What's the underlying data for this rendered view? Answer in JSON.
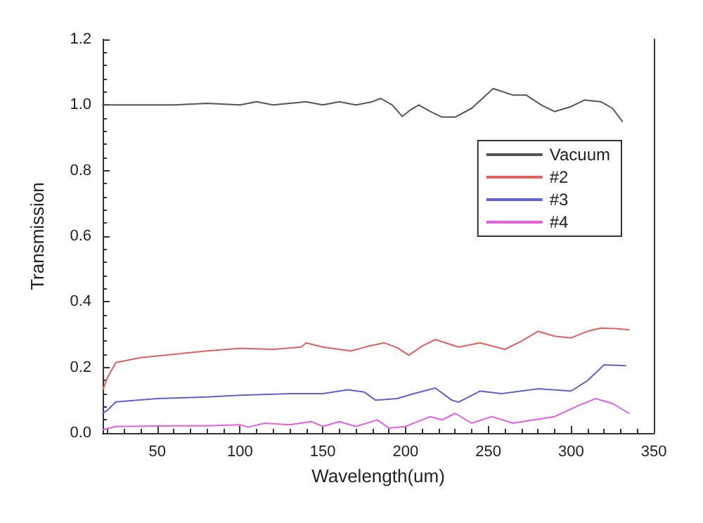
{
  "chart_data": {
    "type": "line",
    "xlabel": "Wavelength(um)",
    "ylabel": "Transmission",
    "xlim": [
      17,
      350
    ],
    "ylim": [
      0,
      1.2
    ],
    "xticks": [
      50,
      100,
      150,
      200,
      250,
      300,
      350
    ],
    "yticks": [
      {
        "value": 0,
        "label": "0.0"
      },
      {
        "value": 0.2,
        "label": "0.2"
      },
      {
        "value": 0.4,
        "label": "0.4"
      },
      {
        "value": 0.6,
        "label": "0.6"
      },
      {
        "value": 0.8,
        "label": "0.8"
      },
      {
        "value": 1,
        "label": "1.0"
      },
      {
        "value": 1.2,
        "label": "1.2"
      }
    ],
    "grid": false,
    "legend": "right",
    "marker": "none",
    "line_style": "solid",
    "series": [
      {
        "name": "Vacuum",
        "color": "#555555",
        "x": [
          17,
          40,
          60,
          80,
          100,
          110,
          120,
          130,
          140,
          150,
          160,
          170,
          180,
          185,
          192,
          198,
          203,
          208,
          215,
          222,
          230,
          240,
          253,
          265,
          273,
          282,
          290,
          300,
          308,
          318,
          325,
          331
        ],
        "values": [
          1.0,
          1.0,
          1.0,
          1.005,
          1.0,
          1.01,
          1.0,
          1.005,
          1.01,
          1.0,
          1.01,
          1.0,
          1.01,
          1.02,
          1.0,
          0.965,
          0.985,
          1.0,
          0.98,
          0.963,
          0.963,
          0.99,
          1.05,
          1.03,
          1.03,
          1.0,
          0.98,
          0.995,
          1.015,
          1.01,
          0.99,
          0.95
        ]
      },
      {
        "name": "#2",
        "color": "#e06060",
        "x": [
          17,
          20,
          25,
          40,
          60,
          80,
          100,
          120,
          137,
          140,
          150,
          167,
          178,
          187,
          195,
          202,
          210,
          218,
          232,
          245,
          260,
          270,
          280,
          290,
          300,
          310,
          318,
          327,
          335
        ],
        "values": [
          0.13,
          0.17,
          0.215,
          0.23,
          0.24,
          0.25,
          0.258,
          0.255,
          0.262,
          0.275,
          0.262,
          0.25,
          0.265,
          0.275,
          0.26,
          0.237,
          0.265,
          0.285,
          0.262,
          0.275,
          0.255,
          0.28,
          0.31,
          0.295,
          0.29,
          0.31,
          0.32,
          0.318,
          0.315
        ]
      },
      {
        "name": "#3",
        "color": "#6060d0",
        "x": [
          17,
          20,
          25,
          50,
          80,
          100,
          130,
          150,
          165,
          175,
          182,
          195,
          205,
          218,
          228,
          232,
          245,
          258,
          280,
          300,
          310,
          320,
          333
        ],
        "values": [
          0.06,
          0.07,
          0.095,
          0.105,
          0.11,
          0.115,
          0.12,
          0.12,
          0.132,
          0.125,
          0.1,
          0.105,
          0.12,
          0.137,
          0.1,
          0.094,
          0.128,
          0.12,
          0.135,
          0.128,
          0.16,
          0.208,
          0.205
        ]
      },
      {
        "name": "#4",
        "color": "#e060e0",
        "x": [
          17,
          25,
          60,
          80,
          100,
          105,
          115,
          130,
          143,
          150,
          160,
          170,
          183,
          190,
          200,
          215,
          222,
          230,
          240,
          252,
          265,
          290,
          305,
          315,
          325,
          335
        ],
        "values": [
          0.01,
          0.02,
          0.022,
          0.022,
          0.025,
          0.018,
          0.03,
          0.025,
          0.035,
          0.02,
          0.035,
          0.02,
          0.04,
          0.015,
          0.02,
          0.05,
          0.04,
          0.06,
          0.03,
          0.05,
          0.03,
          0.05,
          0.085,
          0.105,
          0.09,
          0.06
        ]
      }
    ]
  }
}
